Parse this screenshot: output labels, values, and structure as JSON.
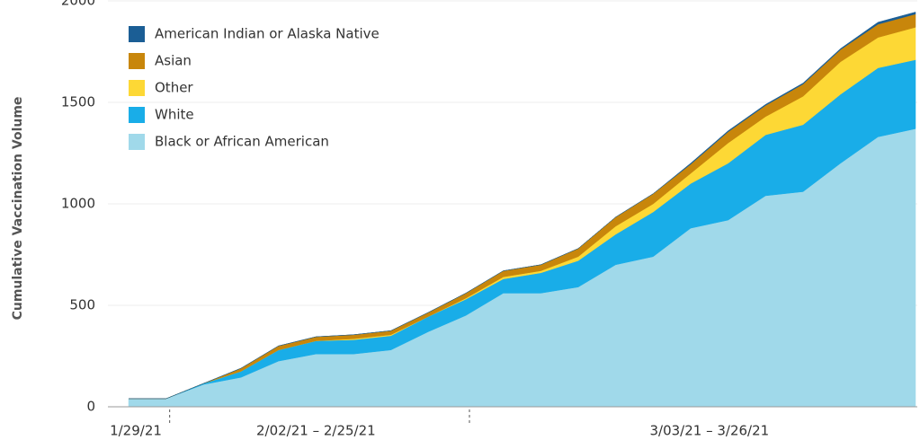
{
  "chart_data": {
    "type": "stacked_area",
    "y_label": "Cumulative Vaccination Volume",
    "categories": [
      null,
      null,
      null,
      null,
      null,
      null,
      null,
      null,
      null,
      null,
      null,
      null,
      null,
      null,
      null,
      null,
      null,
      null,
      null,
      null,
      null,
      null
    ],
    "periods": [
      {
        "label": "1/29/21",
        "points": 1
      },
      {
        "label": "2/02/21 – 2/25/21",
        "points": 8
      },
      {
        "label": "3/03/21 – 3/26/21",
        "points": 13
      }
    ],
    "ylim": [
      0,
      2000
    ],
    "yticks": [
      0,
      500,
      1000,
      1500,
      2000
    ],
    "grid": true,
    "legend": "top-left",
    "series": [
      {
        "name": "Black or African American",
        "color": "#a0d9ea",
        "values": [
          40,
          40,
          110,
          145,
          225,
          260,
          260,
          280,
          370,
          450,
          560,
          560,
          590,
          700,
          740,
          880,
          920,
          1040,
          1060,
          1200,
          1330,
          1370
        ]
      },
      {
        "name": "White",
        "color": "#19ade8",
        "values": [
          0,
          0,
          5,
          30,
          55,
          65,
          70,
          70,
          75,
          80,
          70,
          100,
          130,
          150,
          220,
          220,
          280,
          300,
          330,
          340,
          340,
          340
        ]
      },
      {
        "name": "Other",
        "color": "#fdd835",
        "values": [
          0,
          0,
          0,
          0,
          0,
          0,
          5,
          5,
          0,
          5,
          10,
          10,
          20,
          40,
          40,
          50,
          100,
          90,
          140,
          160,
          150,
          160
        ]
      },
      {
        "name": "Asian",
        "color": "#c8860b",
        "values": [
          0,
          0,
          0,
          15,
          20,
          20,
          20,
          20,
          20,
          25,
          30,
          30,
          40,
          45,
          50,
          45,
          55,
          55,
          60,
          60,
          65,
          65
        ]
      },
      {
        "name": "American Indian or Alaska Native",
        "color": "#1b5e95",
        "values": [
          0,
          0,
          0,
          0,
          0,
          0,
          0,
          0,
          0,
          0,
          0,
          0,
          0,
          0,
          0,
          5,
          5,
          5,
          5,
          5,
          10,
          10
        ]
      }
    ]
  }
}
